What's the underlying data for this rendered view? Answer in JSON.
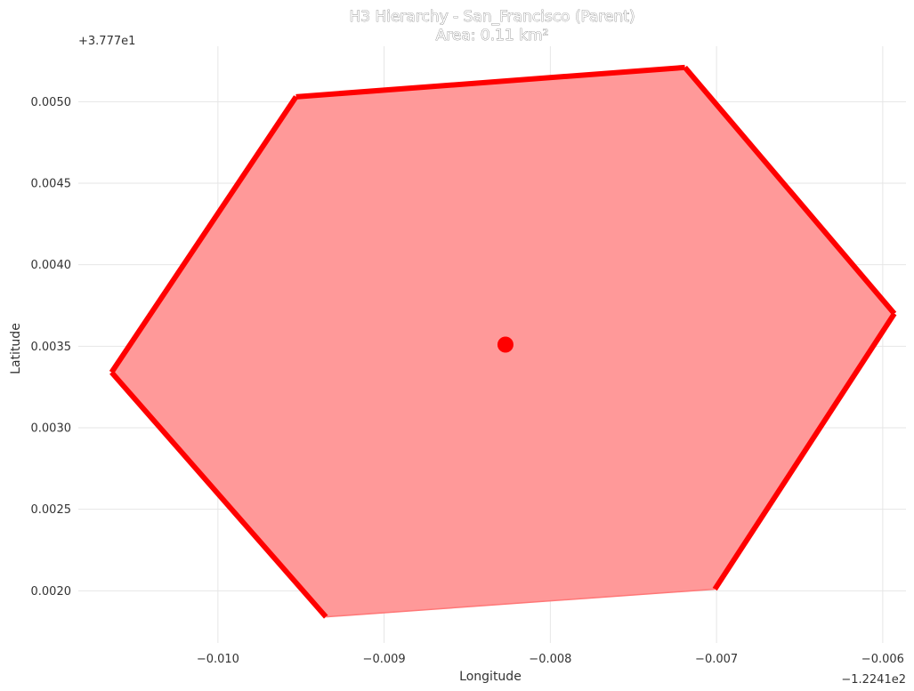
{
  "chart_data": {
    "type": "area",
    "title": "H3 Hierarchy - San_Francisco (Parent)",
    "subtitle": "Area: 0.11 km²",
    "xlabel": "Longitude",
    "ylabel": "Latitude",
    "x_offset_label": "−1.2241e2",
    "y_offset_label": "+3.777e1",
    "xlim": [
      -0.01084,
      -0.00586
    ],
    "ylim": [
      0.00168,
      0.00534
    ],
    "xticks": [
      -0.01,
      -0.009,
      -0.008,
      -0.007,
      -0.006
    ],
    "xtick_labels": [
      "−0.010",
      "−0.009",
      "−0.008",
      "−0.007",
      "−0.006"
    ],
    "yticks": [
      0.002,
      0.0025,
      0.003,
      0.0035,
      0.004,
      0.0045,
      0.005
    ],
    "ytick_labels": [
      "0.0020",
      "0.0025",
      "0.0030",
      "0.0035",
      "0.0040",
      "0.0045",
      "0.0050"
    ],
    "grid": true,
    "series": [
      {
        "kind": "polygon",
        "fill_color": "#ff9999",
        "edge_color": "#ff0000",
        "points": [
          {
            "x": -0.00935,
            "y": 0.00184
          },
          {
            "x": -0.01064,
            "y": 0.00334
          },
          {
            "x": -0.00953,
            "y": 0.00503
          },
          {
            "x": -0.00719,
            "y": 0.00521
          },
          {
            "x": -0.00593,
            "y": 0.0037
          },
          {
            "x": -0.00701,
            "y": 0.00201
          }
        ]
      },
      {
        "kind": "point",
        "color": "#ff0000",
        "points": [
          {
            "x": -0.00827,
            "y": 0.00351
          }
        ]
      }
    ]
  }
}
